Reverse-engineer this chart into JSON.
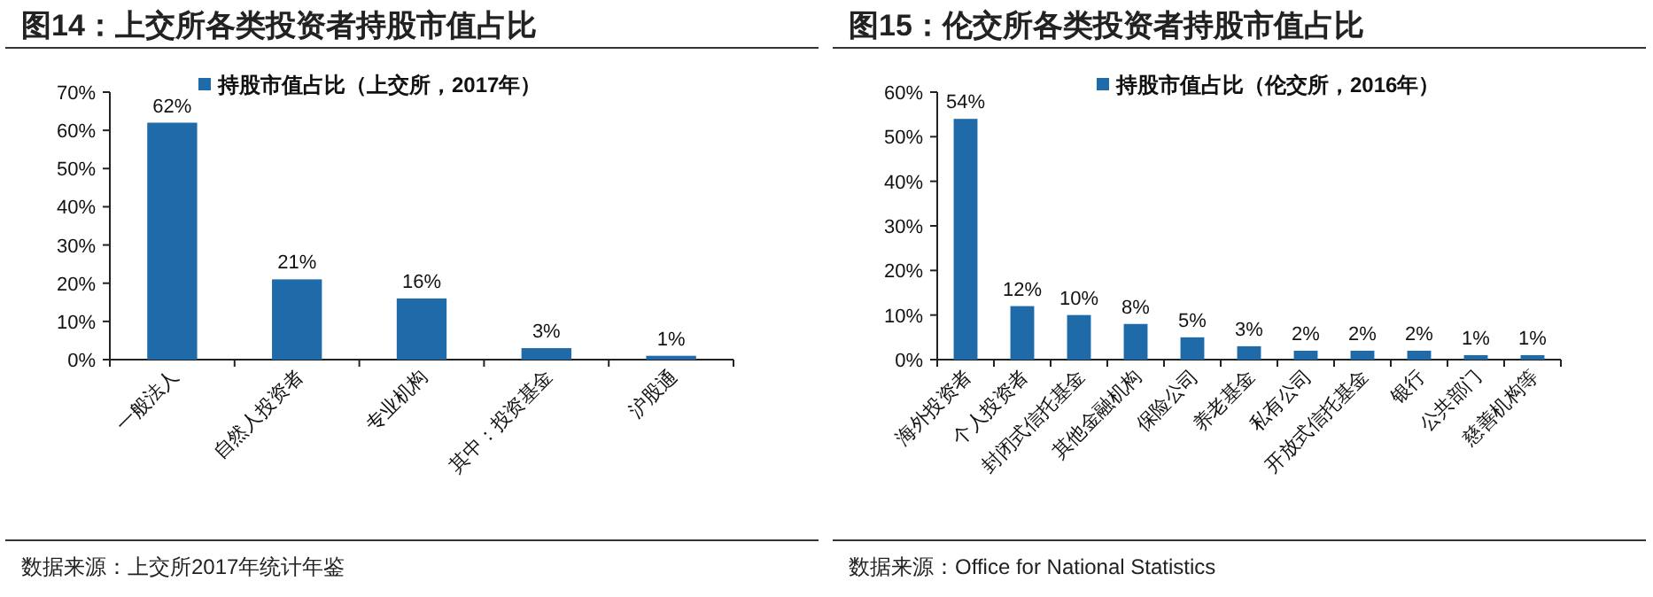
{
  "chart_data": [
    {
      "type": "bar",
      "title": "图14：上交所各类投资者持股市值占比",
      "categories": [
        "一般法人",
        "自然人投资者",
        "专业机构",
        "其中：投资基金",
        "沪股通"
      ],
      "series": [
        {
          "name": "持股市值占比（上交所，2017年）",
          "color": "#1f6aa8",
          "values": [
            62,
            21,
            16,
            3,
            1
          ],
          "value_labels": [
            "62%",
            "21%",
            "16%",
            "3%",
            "1%"
          ]
        }
      ],
      "ylim": [
        0,
        70
      ],
      "yticks": [
        {
          "value": 0,
          "label": "0%"
        },
        {
          "value": 10,
          "label": "10%"
        },
        {
          "value": 20,
          "label": "20%"
        },
        {
          "value": 30,
          "label": "30%"
        },
        {
          "value": 40,
          "label": "40%"
        },
        {
          "value": 50,
          "label": "50%"
        },
        {
          "value": 60,
          "label": "60%"
        },
        {
          "value": 70,
          "label": "70%"
        }
      ],
      "grid": false,
      "legend": "top",
      "annotations": [
        "数据来源：上交所2017年统计年鉴"
      ]
    },
    {
      "type": "bar",
      "title": "图15：伦交所各类投资者持股市值占比",
      "categories": [
        "海外投资者",
        "个人投资者",
        "封闭式信托基金",
        "其他金融机构",
        "保险公司",
        "养老基金",
        "私有公司",
        "开放式信托基金",
        "银行",
        "公共部门",
        "慈善机构等"
      ],
      "series": [
        {
          "name": "持股市值占比（伦交所，2016年）",
          "color": "#1f6aa8",
          "values": [
            54,
            12,
            10,
            8,
            5,
            3,
            2,
            2,
            2,
            1,
            1
          ],
          "value_labels": [
            "54%",
            "12%",
            "10%",
            "8%",
            "5%",
            "3%",
            "2%",
            "2%",
            "2%",
            "1%",
            "1%"
          ]
        }
      ],
      "ylim": [
        0,
        60
      ],
      "yticks": [
        {
          "value": 0,
          "label": "0%"
        },
        {
          "value": 10,
          "label": "10%"
        },
        {
          "value": 20,
          "label": "20%"
        },
        {
          "value": 30,
          "label": "30%"
        },
        {
          "value": 40,
          "label": "40%"
        },
        {
          "value": 50,
          "label": "50%"
        },
        {
          "value": 60,
          "label": "60%"
        }
      ],
      "grid": false,
      "legend": "top",
      "annotations": [
        "数据来源：Office for National Statistics"
      ]
    }
  ]
}
